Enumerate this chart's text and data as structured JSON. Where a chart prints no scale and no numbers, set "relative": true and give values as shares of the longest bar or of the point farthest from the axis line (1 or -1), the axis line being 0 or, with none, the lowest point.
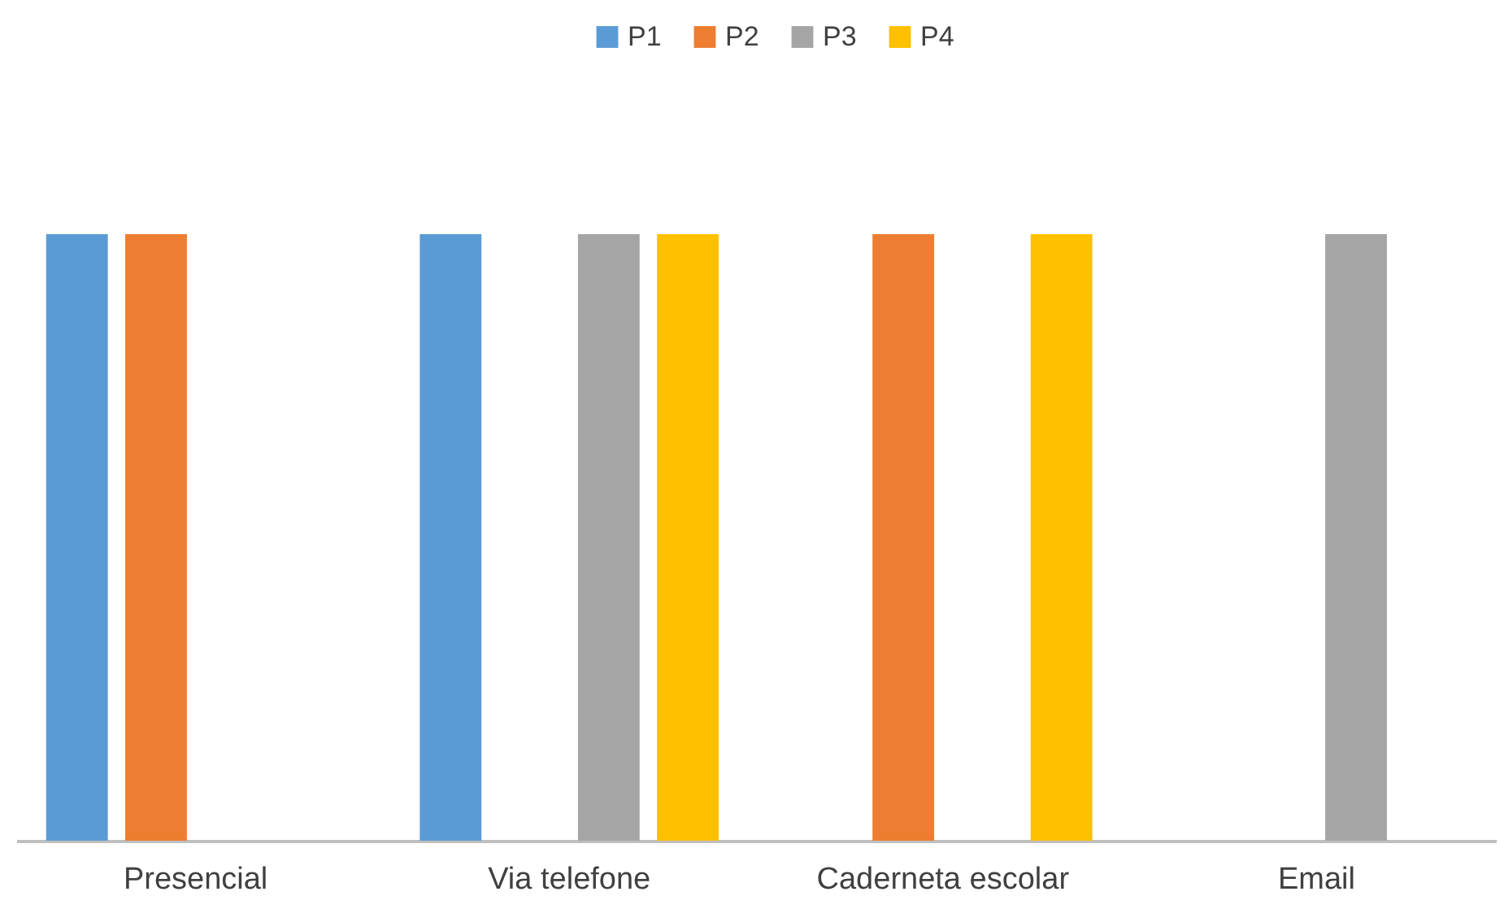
{
  "chart_data": {
    "type": "bar",
    "relative": true,
    "categories": [
      "Presencial",
      "Via telefone",
      "Caderneta escolar",
      "Email"
    ],
    "series": [
      {
        "name": "P1",
        "color": "#5b9bd5",
        "values": [
          1,
          1,
          null,
          null
        ]
      },
      {
        "name": "P2",
        "color": "#ed7d31",
        "values": [
          1,
          null,
          1,
          null
        ]
      },
      {
        "name": "P3",
        "color": "#a5a5a5",
        "values": [
          null,
          1,
          null,
          1
        ]
      },
      {
        "name": "P4",
        "color": "#ffc000",
        "values": [
          null,
          1,
          1,
          null
        ]
      }
    ],
    "legend": "top",
    "grid": false
  }
}
